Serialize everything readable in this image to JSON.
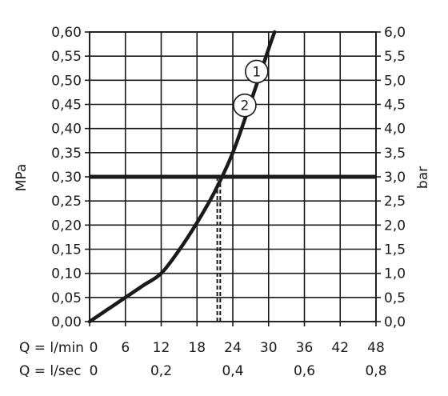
{
  "chart_data": {
    "type": "line",
    "title": "",
    "ylabel_left": "MPa",
    "ylabel_right": "bar",
    "xlim": [
      0,
      48
    ],
    "ylim": [
      0,
      0.6
    ],
    "grid": true,
    "colors": {
      "ink": "#1a1a1a",
      "grid": "#1a1a1a",
      "background": "#ffffff"
    },
    "left_ticks": {
      "values": [
        0,
        0.05,
        0.1,
        0.15,
        0.2,
        0.25,
        0.3,
        0.35,
        0.4,
        0.45,
        0.5,
        0.55,
        0.6
      ],
      "labels": [
        "0,00",
        "0,05",
        "0,10",
        "0,15",
        "0,20",
        "0,25",
        "0,30",
        "0,35",
        "0,40",
        "0,45",
        "0,50",
        "0,55",
        "0,60"
      ]
    },
    "right_ticks": {
      "values": [
        0,
        0.05,
        0.1,
        0.15,
        0.2,
        0.25,
        0.3,
        0.35,
        0.4,
        0.45,
        0.5,
        0.55,
        0.6
      ],
      "labels": [
        "0,0",
        "0,5",
        "1,0",
        "1,5",
        "2,0",
        "2,5",
        "3,0",
        "3,5",
        "4,0",
        "4,5",
        "5,0",
        "5,5",
        "6,0"
      ]
    },
    "x_rows": [
      {
        "label": "Q = l/min",
        "ticks": [
          0,
          6,
          12,
          18,
          24,
          30,
          36,
          42,
          48
        ],
        "labels": [
          "0",
          "6",
          "12",
          "18",
          "24",
          "30",
          "36",
          "42",
          "48"
        ]
      },
      {
        "label": "Q = l/sec",
        "ticks": [
          0,
          12,
          24,
          36,
          48
        ],
        "labels": [
          "0",
          "0,2",
          "0,4",
          "0,6",
          "0,8"
        ]
      }
    ],
    "series": [
      {
        "x": [
          0,
          3,
          6,
          9,
          12,
          15,
          18,
          21,
          24,
          27,
          30,
          31
        ],
        "y": [
          0,
          0.025,
          0.05,
          0.075,
          0.1,
          0.148,
          0.205,
          0.27,
          0.35,
          0.455,
          0.565,
          0.6
        ]
      }
    ],
    "reference_line": {
      "y": 0.3
    },
    "dashed_markers": [
      {
        "x": 21.4
      },
      {
        "x": 21.9
      }
    ],
    "curve_labels": [
      {
        "text": "1",
        "x": 28,
        "y": 0.518
      },
      {
        "text": "2",
        "x": 26,
        "y": 0.448
      }
    ]
  }
}
